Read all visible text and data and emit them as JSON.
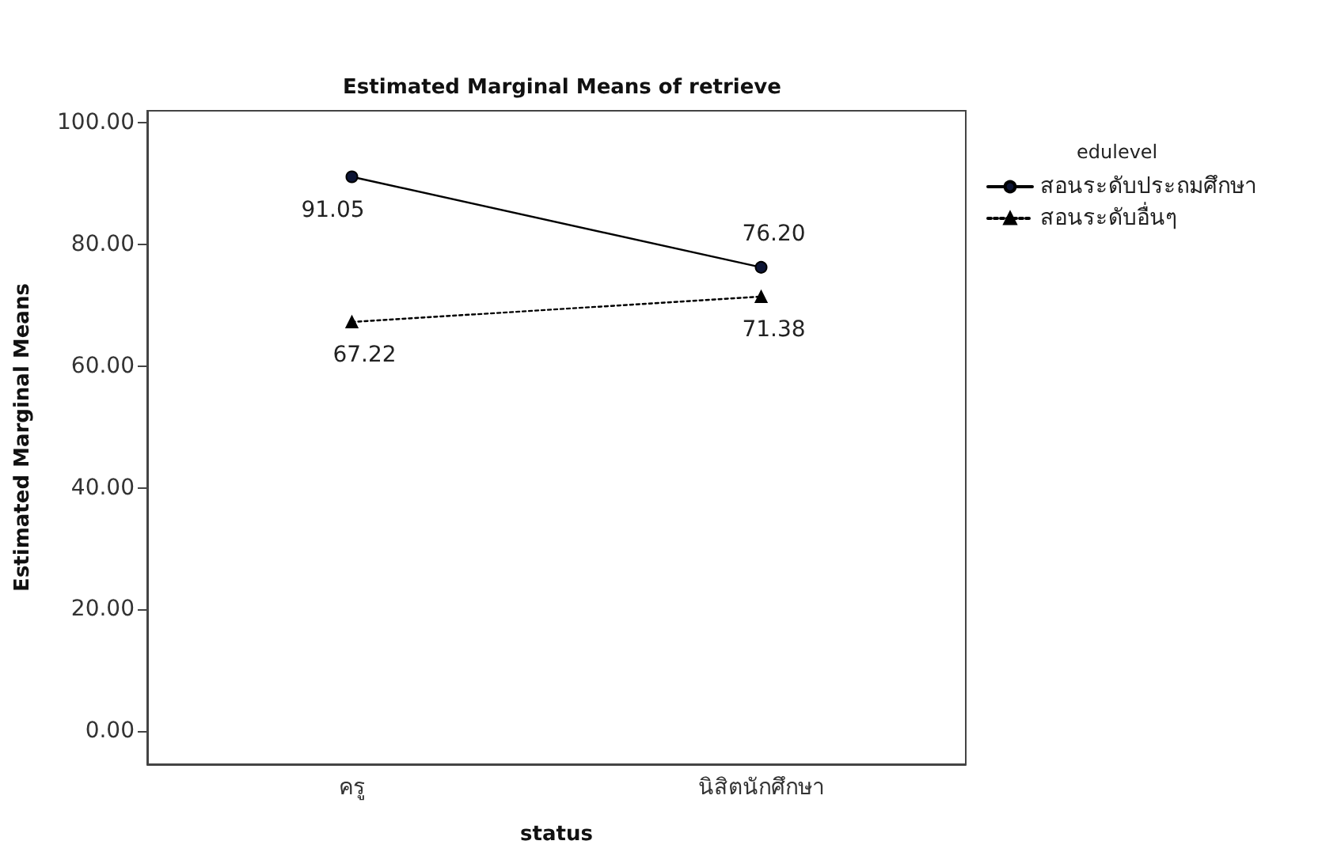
{
  "chart_data": {
    "type": "line",
    "title": "Estimated Marginal Means of retrieve",
    "xlabel": "status",
    "ylabel": "Estimated Marginal Means",
    "legend_title": "edulevel",
    "categories": [
      "ครู",
      "นิสิตนักศึกษา"
    ],
    "series": [
      {
        "name": "สอนระดับประถมศึกษา",
        "color": "#000000",
        "values": [
          91.05,
          76.2
        ],
        "value_labels": [
          "91.05",
          "76.20"
        ],
        "marker": "circle",
        "line_style": "solid"
      },
      {
        "name": "สอนระดับอื่นๆ",
        "color": "#000000",
        "values": [
          67.22,
          71.38
        ],
        "value_labels": [
          "67.22",
          "71.38"
        ],
        "marker": "triangle",
        "line_style": "dotted"
      }
    ],
    "ylim": [
      -5.4,
      101.9
    ],
    "yticks": [
      {
        "value": 0,
        "label": "0.00"
      },
      {
        "value": 20,
        "label": "20.00"
      },
      {
        "value": 40,
        "label": "40.00"
      },
      {
        "value": 60,
        "label": "60.00"
      },
      {
        "value": 80,
        "label": "80.00"
      },
      {
        "value": 100,
        "label": "100.00"
      }
    ],
    "legend": "right",
    "grid": false
  }
}
